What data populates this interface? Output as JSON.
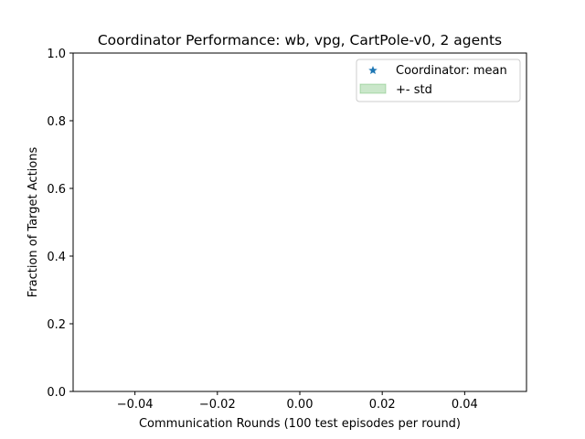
{
  "chart_data": {
    "type": "scatter",
    "title": "Coordinator Performance: wb, vpg, CartPole-v0, 2 agents",
    "xlabel": "Communication Rounds (100 test episodes per round)",
    "ylabel": "Fraction of Target Actions",
    "xlim": [
      -0.055,
      0.055
    ],
    "ylim": [
      0.0,
      1.0
    ],
    "xticks": [
      -0.04,
      -0.02,
      0.0,
      0.02,
      0.04
    ],
    "xtick_labels": [
      "−0.04",
      "−0.02",
      "0.00",
      "0.02",
      "0.04"
    ],
    "yticks": [
      0.0,
      0.2,
      0.4,
      0.6,
      0.8,
      1.0
    ],
    "ytick_labels": [
      "0.0",
      "0.2",
      "0.4",
      "0.6",
      "0.8",
      "1.0"
    ],
    "grid": false,
    "legend_position": "top-right",
    "series": [
      {
        "name": "Coordinator: mean",
        "marker": "star",
        "color": "#1f77b4",
        "x": [],
        "y": []
      },
      {
        "name": "+- std",
        "type": "band",
        "color": "#2ca02c",
        "x": [],
        "lower": [],
        "upper": []
      }
    ]
  }
}
